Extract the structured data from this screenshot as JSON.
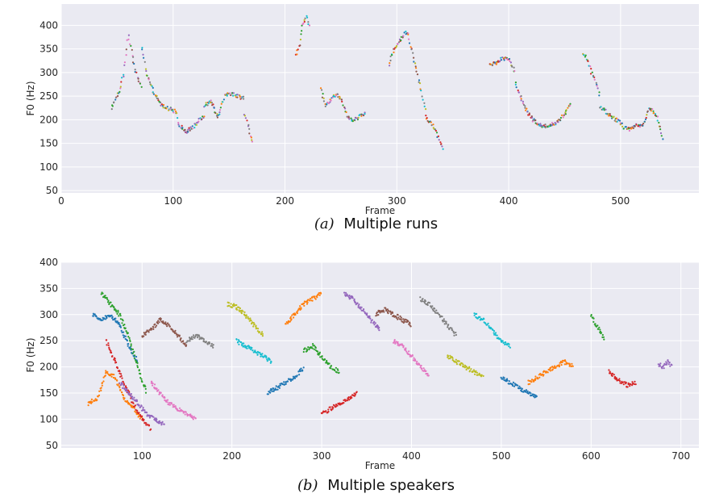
{
  "chart_data": [
    {
      "type": "scatter",
      "caption_letter": "(a)",
      "caption_text": "Multiple runs",
      "xlabel": "Frame",
      "ylabel": "F0 (Hz)",
      "xlim": [
        0,
        570
      ],
      "ylim": [
        45,
        445
      ],
      "xticks": [
        0,
        100,
        200,
        300,
        400,
        500
      ],
      "yticks": [
        50,
        100,
        150,
        200,
        250,
        300,
        350,
        400
      ],
      "grid": true,
      "segments": [
        {
          "x": [
            45,
            52,
            56,
            60,
            64,
            68,
            72
          ],
          "y": [
            225,
            260,
            298,
            380,
            330,
            290,
            265
          ]
        },
        {
          "x": [
            72,
            76,
            82,
            88,
            94,
            100,
            104
          ],
          "y": [
            355,
            300,
            260,
            235,
            225,
            220,
            215
          ]
        },
        {
          "x": [
            104,
            108,
            112,
            118,
            124,
            128
          ],
          "y": [
            200,
            180,
            175,
            185,
            200,
            210
          ]
        },
        {
          "x": [
            128,
            134,
            140,
            146,
            152,
            158,
            164
          ],
          "y": [
            230,
            240,
            205,
            250,
            255,
            250,
            245
          ]
        },
        {
          "x": [
            164,
            168,
            172
          ],
          "y": [
            210,
            180,
            145
          ]
        },
        {
          "x": [
            210,
            213,
            216,
            219,
            222
          ],
          "y": [
            335,
            360,
            405,
            420,
            395
          ]
        },
        {
          "x": [
            232,
            236,
            240,
            246,
            252
          ],
          "y": [
            265,
            230,
            240,
            255,
            240
          ]
        },
        {
          "x": [
            252,
            256,
            260,
            266,
            272
          ],
          "y": [
            230,
            205,
            200,
            205,
            215
          ]
        },
        {
          "x": [
            293,
            296,
            300,
            305,
            308,
            311
          ],
          "y": [
            318,
            340,
            360,
            375,
            385,
            380
          ]
        },
        {
          "x": [
            311,
            314,
            318,
            322,
            326
          ],
          "y": [
            370,
            340,
            300,
            260,
            215
          ]
        },
        {
          "x": [
            326,
            330,
            334,
            338,
            342
          ],
          "y": [
            205,
            195,
            180,
            160,
            135
          ]
        },
        {
          "x": [
            383,
            388,
            394,
            400,
            406
          ],
          "y": [
            320,
            318,
            330,
            330,
            300
          ]
        },
        {
          "x": [
            406,
            410,
            416,
            422,
            428,
            434
          ],
          "y": [
            280,
            250,
            220,
            200,
            190,
            185
          ]
        },
        {
          "x": [
            434,
            440,
            446,
            452,
            456
          ],
          "y": [
            185,
            190,
            200,
            220,
            240
          ]
        },
        {
          "x": [
            466,
            470,
            474,
            478,
            482
          ],
          "y": [
            338,
            330,
            300,
            280,
            250
          ]
        },
        {
          "x": [
            482,
            486,
            490,
            496,
            502
          ],
          "y": [
            225,
            220,
            210,
            200,
            190
          ]
        },
        {
          "x": [
            502,
            508,
            514,
            520,
            526,
            532,
            538
          ],
          "y": [
            185,
            180,
            190,
            185,
            225,
            210,
            155
          ]
        }
      ]
    },
    {
      "type": "scatter",
      "caption_letter": "(b)",
      "caption_text": "Multiple speakers",
      "xlabel": "Frame",
      "ylabel": "F0 (Hz)",
      "xlim": [
        10,
        720
      ],
      "ylim": [
        45,
        400
      ],
      "xticks": [
        100,
        200,
        300,
        400,
        500,
        600,
        700
      ],
      "yticks": [
        50,
        100,
        150,
        200,
        250,
        300,
        350,
        400
      ],
      "grid": true,
      "segments": [
        {
          "x": [
            45,
            55,
            65,
            75,
            85,
            95
          ],
          "y": [
            300,
            290,
            300,
            280,
            240,
            210
          ]
        },
        {
          "x": [
            40,
            50,
            60,
            70,
            80,
            90,
            100
          ],
          "y": [
            130,
            140,
            190,
            180,
            140,
            120,
            100
          ]
        },
        {
          "x": [
            55,
            65,
            75,
            85,
            95,
            105
          ],
          "y": [
            340,
            320,
            300,
            260,
            200,
            150
          ]
        },
        {
          "x": [
            60,
            70,
            80,
            90,
            100,
            110
          ],
          "y": [
            250,
            210,
            170,
            130,
            100,
            80
          ]
        },
        {
          "x": [
            75,
            85,
            95,
            105,
            115,
            125
          ],
          "y": [
            170,
            150,
            130,
            110,
            100,
            90
          ]
        },
        {
          "x": [
            100,
            110,
            120,
            130,
            140,
            150
          ],
          "y": [
            260,
            270,
            290,
            280,
            260,
            240
          ]
        },
        {
          "x": [
            110,
            120,
            130,
            140,
            150,
            160
          ],
          "y": [
            170,
            150,
            130,
            120,
            110,
            100
          ]
        },
        {
          "x": [
            150,
            160,
            170,
            180
          ],
          "y": [
            250,
            260,
            250,
            240
          ]
        },
        {
          "x": [
            195,
            205,
            215,
            225,
            235
          ],
          "y": [
            320,
            315,
            300,
            280,
            260
          ]
        },
        {
          "x": [
            205,
            215,
            225,
            235,
            245
          ],
          "y": [
            250,
            240,
            230,
            220,
            210
          ]
        },
        {
          "x": [
            240,
            250,
            260,
            270,
            280
          ],
          "y": [
            150,
            160,
            170,
            180,
            200
          ]
        },
        {
          "x": [
            260,
            270,
            280,
            290,
            300
          ],
          "y": [
            280,
            300,
            320,
            330,
            340
          ]
        },
        {
          "x": [
            280,
            290,
            300,
            310,
            320
          ],
          "y": [
            230,
            240,
            220,
            200,
            190
          ]
        },
        {
          "x": [
            300,
            310,
            320,
            330,
            340
          ],
          "y": [
            110,
            120,
            130,
            140,
            150
          ]
        },
        {
          "x": [
            325,
            335,
            345,
            355,
            365
          ],
          "y": [
            340,
            330,
            310,
            290,
            270
          ]
        },
        {
          "x": [
            360,
            370,
            380,
            390,
            400
          ],
          "y": [
            300,
            310,
            300,
            290,
            280
          ]
        },
        {
          "x": [
            380,
            390,
            400,
            410,
            420
          ],
          "y": [
            250,
            240,
            220,
            200,
            180
          ]
        },
        {
          "x": [
            410,
            420,
            430,
            440,
            450
          ],
          "y": [
            330,
            320,
            300,
            280,
            260
          ]
        },
        {
          "x": [
            440,
            450,
            460,
            470,
            480
          ],
          "y": [
            220,
            210,
            200,
            190,
            180
          ]
        },
        {
          "x": [
            470,
            480,
            490,
            500,
            510
          ],
          "y": [
            300,
            290,
            270,
            250,
            240
          ]
        },
        {
          "x": [
            500,
            510,
            520,
            530,
            540
          ],
          "y": [
            180,
            170,
            160,
            150,
            140
          ]
        },
        {
          "x": [
            530,
            540,
            550,
            560,
            570,
            580
          ],
          "y": [
            170,
            180,
            190,
            200,
            210,
            200
          ]
        },
        {
          "x": [
            600,
            605,
            610,
            615
          ],
          "y": [
            300,
            280,
            270,
            250
          ]
        },
        {
          "x": [
            620,
            630,
            640,
            650
          ],
          "y": [
            190,
            175,
            165,
            170
          ]
        },
        {
          "x": [
            675,
            680,
            685,
            690
          ],
          "y": [
            205,
            200,
            210,
            200
          ]
        }
      ]
    }
  ]
}
